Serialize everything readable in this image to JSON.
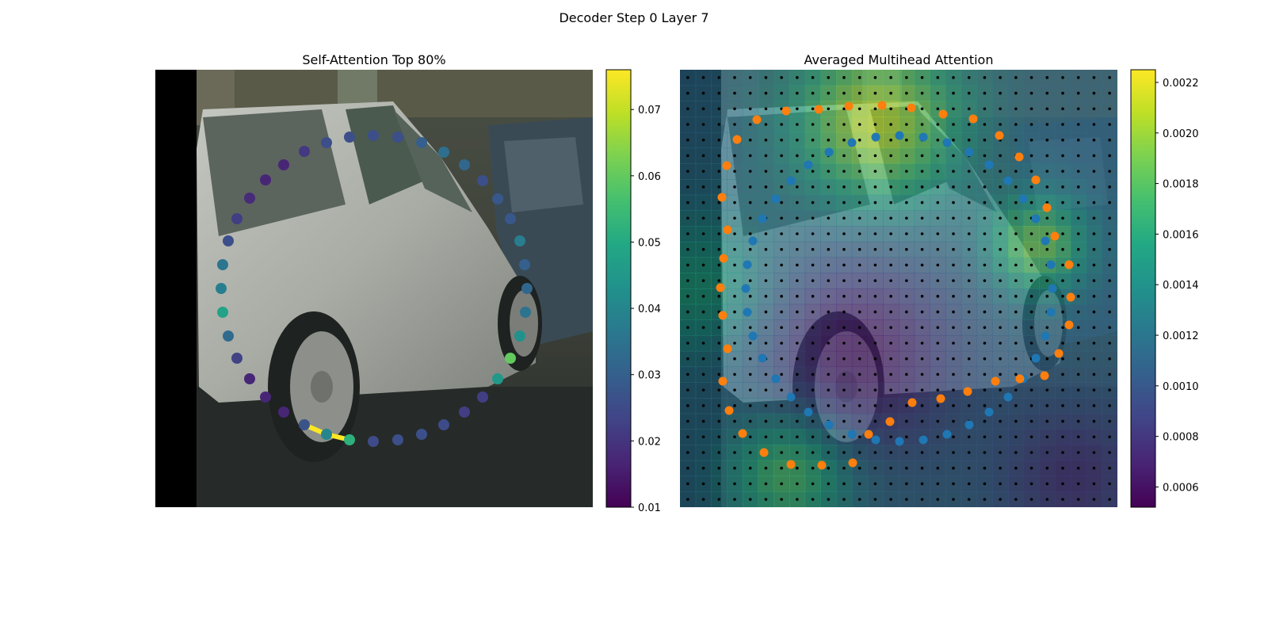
{
  "figure": {
    "suptitle": "Decoder Step 0 Layer 7"
  },
  "chart_data": [
    {
      "type": "scatter",
      "title": "Self-Attention Top 80%",
      "background": "photo of a silver hatchback car parked on a street",
      "axes_visible": false,
      "colormap": "viridis",
      "colorbar": {
        "min": 0.01,
        "max": 0.076,
        "ticks": [
          "0.01",
          "0.02",
          "0.03",
          "0.04",
          "0.05",
          "0.06",
          "0.07"
        ]
      },
      "points": [
        {
          "x": 441,
          "y": 555,
          "v": 0.052
        },
        {
          "x": 471,
          "y": 557,
          "v": 0.025
        },
        {
          "x": 502,
          "y": 555,
          "v": 0.026
        },
        {
          "x": 532,
          "y": 548,
          "v": 0.026
        },
        {
          "x": 560,
          "y": 536,
          "v": 0.025
        },
        {
          "x": 586,
          "y": 520,
          "v": 0.022
        },
        {
          "x": 609,
          "y": 501,
          "v": 0.022
        },
        {
          "x": 628,
          "y": 478,
          "v": 0.045
        },
        {
          "x": 644,
          "y": 452,
          "v": 0.06
        },
        {
          "x": 656,
          "y": 424,
          "v": 0.043
        },
        {
          "x": 663,
          "y": 394,
          "v": 0.035
        },
        {
          "x": 665,
          "y": 364,
          "v": 0.032
        },
        {
          "x": 662,
          "y": 334,
          "v": 0.03
        },
        {
          "x": 656,
          "y": 304,
          "v": 0.038
        },
        {
          "x": 644,
          "y": 276,
          "v": 0.028
        },
        {
          "x": 628,
          "y": 251,
          "v": 0.028
        },
        {
          "x": 609,
          "y": 228,
          "v": 0.026
        },
        {
          "x": 586,
          "y": 208,
          "v": 0.032
        },
        {
          "x": 560,
          "y": 192,
          "v": 0.034
        },
        {
          "x": 532,
          "y": 180,
          "v": 0.03
        },
        {
          "x": 502,
          "y": 173,
          "v": 0.026
        },
        {
          "x": 471,
          "y": 171,
          "v": 0.026
        },
        {
          "x": 441,
          "y": 173,
          "v": 0.026
        },
        {
          "x": 412,
          "y": 180,
          "v": 0.026
        },
        {
          "x": 384,
          "y": 191,
          "v": 0.021
        },
        {
          "x": 358,
          "y": 208,
          "v": 0.017
        },
        {
          "x": 335,
          "y": 227,
          "v": 0.017
        },
        {
          "x": 315,
          "y": 250,
          "v": 0.018
        },
        {
          "x": 299,
          "y": 276,
          "v": 0.022
        },
        {
          "x": 288,
          "y": 304,
          "v": 0.026
        },
        {
          "x": 281,
          "y": 334,
          "v": 0.036
        },
        {
          "x": 279,
          "y": 364,
          "v": 0.038
        },
        {
          "x": 281,
          "y": 394,
          "v": 0.048
        },
        {
          "x": 288,
          "y": 424,
          "v": 0.033
        },
        {
          "x": 299,
          "y": 452,
          "v": 0.023
        },
        {
          "x": 315,
          "y": 478,
          "v": 0.017
        },
        {
          "x": 335,
          "y": 501,
          "v": 0.017
        },
        {
          "x": 358,
          "y": 520,
          "v": 0.017
        },
        {
          "x": 384,
          "y": 536,
          "v": 0.027
        },
        {
          "x": 412,
          "y": 548,
          "v": 0.04
        }
      ],
      "highlight_segments": [
        {
          "from": [
            384,
            536
          ],
          "to": [
            412,
            548
          ]
        },
        {
          "from": [
            412,
            548
          ],
          "to": [
            441,
            555
          ]
        }
      ]
    },
    {
      "type": "heatmap",
      "title": "Averaged Multihead Attention",
      "background": "same car photo overlaid with attention heatmap",
      "axes_visible": false,
      "colormap": "viridis",
      "colorbar": {
        "min": 0.00052,
        "max": 0.00225,
        "ticks": [
          "0.0006",
          "0.0008",
          "0.0010",
          "0.0012",
          "0.0014",
          "0.0016",
          "0.0018",
          "0.0020",
          "0.0022"
        ]
      },
      "grid_size": 28,
      "grid_dot_color": "#000000",
      "series": [
        {
          "color": "#1f77b4",
          "points": [
            [
              1046,
              192
            ],
            [
              1075,
              180
            ],
            [
              1105,
              173
            ],
            [
              1135,
              171
            ],
            [
              1165,
              173
            ],
            [
              1195,
              180
            ],
            [
              1223,
              192
            ],
            [
              1248,
              208
            ],
            [
              1272,
              228
            ],
            [
              1291,
              251
            ],
            [
              1307,
              276
            ],
            [
              1319,
              304
            ],
            [
              1326,
              334
            ],
            [
              1328,
              364
            ],
            [
              1326,
              394
            ],
            [
              1319,
              424
            ],
            [
              1307,
              452
            ],
            [
              1291,
              478
            ],
            [
              1272,
              501
            ],
            [
              1248,
              520
            ],
            [
              1223,
              536
            ],
            [
              1195,
              548
            ],
            [
              1165,
              555
            ],
            [
              1135,
              557
            ],
            [
              1105,
              555
            ],
            [
              1075,
              548
            ],
            [
              1046,
              536
            ],
            [
              1020,
              520
            ],
            [
              998,
              501
            ],
            [
              979,
              478
            ],
            [
              962,
              452
            ],
            [
              950,
              424
            ],
            [
              943,
              394
            ],
            [
              941,
              364
            ],
            [
              943,
              334
            ],
            [
              950,
              304
            ],
            [
              962,
              276
            ],
            [
              979,
              251
            ],
            [
              998,
              228
            ],
            [
              1020,
              208
            ]
          ]
        },
        {
          "color": "#ff7f0e",
          "points": [
            [
              1113,
              133
            ],
            [
              1150,
              136
            ],
            [
              1190,
              144
            ],
            [
              1228,
              150
            ],
            [
              1261,
              171
            ],
            [
              1286,
              198
            ],
            [
              1307,
              227
            ],
            [
              1321,
              262
            ],
            [
              1331,
              298
            ],
            [
              1349,
              334
            ],
            [
              1351,
              375
            ],
            [
              1349,
              410
            ],
            [
              1336,
              446
            ],
            [
              1318,
              474
            ],
            [
              1287,
              478
            ],
            [
              1256,
              481
            ],
            [
              1221,
              494
            ],
            [
              1187,
              503
            ],
            [
              1151,
              508
            ],
            [
              1123,
              532
            ],
            [
              1096,
              548
            ],
            [
              1076,
              584
            ],
            [
              1037,
              587
            ],
            [
              998,
              586
            ],
            [
              964,
              571
            ],
            [
              937,
              547
            ],
            [
              920,
              518
            ],
            [
              912,
              481
            ],
            [
              918,
              440
            ],
            [
              912,
              398
            ],
            [
              909,
              363
            ],
            [
              913,
              326
            ],
            [
              918,
              290
            ],
            [
              911,
              249
            ],
            [
              917,
              209
            ],
            [
              930,
              176
            ],
            [
              955,
              151
            ],
            [
              992,
              140
            ],
            [
              1033,
              138
            ],
            [
              1071,
              134
            ]
          ]
        }
      ]
    }
  ]
}
